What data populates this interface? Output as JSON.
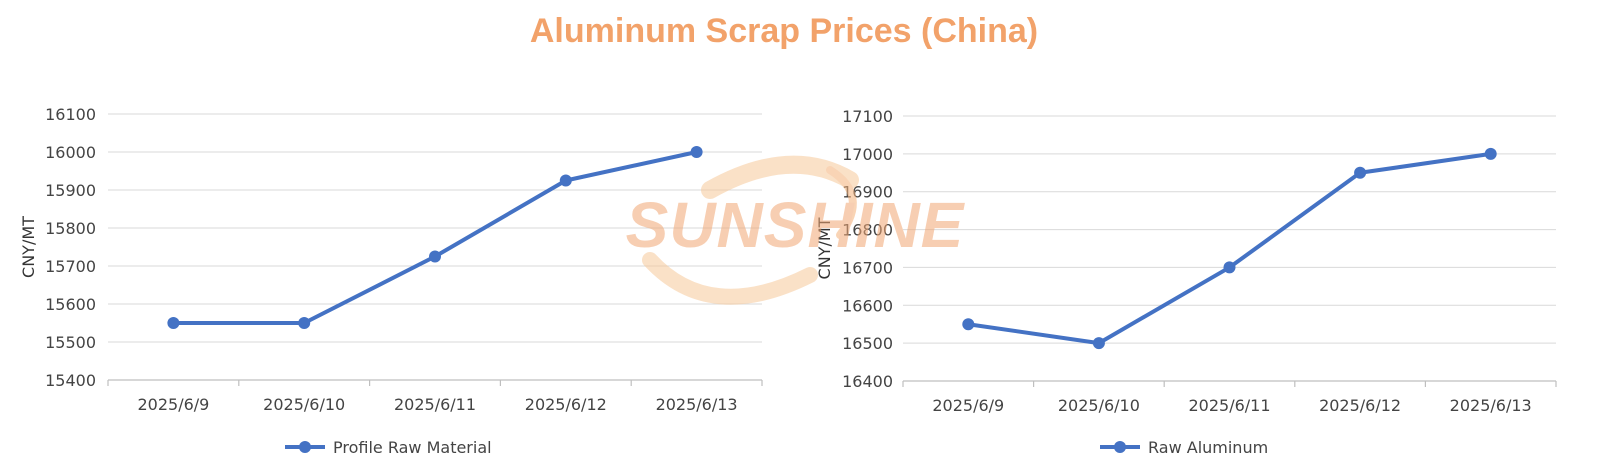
{
  "title": "Aluminum Scrap Prices (China)",
  "watermark_text": "SUNSHINE",
  "colors": {
    "series": "#4472c4",
    "title": "#f2a26a",
    "grid": "#d9d9d9"
  },
  "chart_data": [
    {
      "type": "line",
      "categories": [
        "2025/6/9",
        "2025/6/10",
        "2025/6/11",
        "2025/6/12",
        "2025/6/13"
      ],
      "series": [
        {
          "name": "Profile Raw Material",
          "values": [
            15550,
            15550,
            15725,
            15925,
            16000
          ]
        }
      ],
      "ylabel": "CNY/MT",
      "ylim": [
        15400,
        16100
      ],
      "yticks": [
        15400,
        15500,
        15600,
        15700,
        15800,
        15900,
        16000,
        16100
      ],
      "grid": true,
      "legend": "bottom"
    },
    {
      "type": "line",
      "categories": [
        "2025/6/9",
        "2025/6/10",
        "2025/6/11",
        "2025/6/12",
        "2025/6/13"
      ],
      "series": [
        {
          "name": "Raw Aluminum",
          "values": [
            16550,
            16500,
            16700,
            16950,
            17000
          ]
        }
      ],
      "ylabel": "CNY/MT",
      "ylim": [
        16400,
        17100
      ],
      "yticks": [
        16400,
        16500,
        16600,
        16700,
        16800,
        16900,
        17000,
        17100
      ],
      "grid": true,
      "legend": "bottom"
    }
  ]
}
